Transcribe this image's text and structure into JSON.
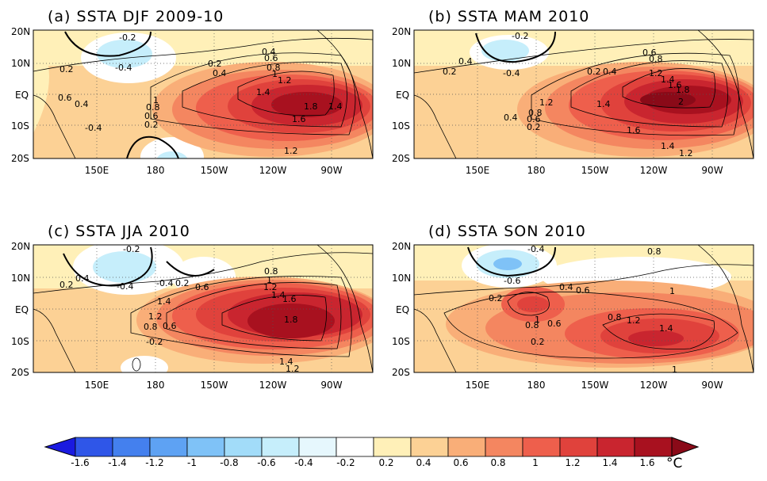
{
  "panels": [
    {
      "title": "(a) SSTA DJF 2009-10"
    },
    {
      "title": "(b) SSTA MAM 2010"
    },
    {
      "title": "(c) SSTA JJA 2010"
    },
    {
      "title": "(d) SSTA SON 2010"
    }
  ],
  "lat_ticks": [
    "20N",
    "10N",
    "EQ",
    "10S",
    "20S"
  ],
  "lon_ticks": [
    "150E",
    "180",
    "150W",
    "120W",
    "90W"
  ],
  "contour_labels": {
    "a": [
      "-0.2",
      "-0.4",
      "0.2",
      "0.2",
      "0.4",
      "0.4",
      "0.6",
      "0.8",
      "1",
      "1.2",
      "1.4",
      "1.8",
      "1.4",
      "1.6",
      "1.2",
      "0.6",
      "0.4",
      "1",
      "0.8",
      "0.6",
      "0.2",
      "-0.4"
    ],
    "b": [
      "-0.2",
      "0.4",
      "0.2",
      "-0.4",
      "0.2",
      "0.4",
      "0.6",
      "0.8",
      "1.2",
      "1.4",
      "1.6",
      "1.8",
      "2",
      "1.4",
      "1.2",
      "1.6",
      "0.4",
      "0.8",
      "0.6",
      "0.2",
      "1.4",
      "1.2"
    ],
    "c": [
      "-0.2",
      "0.2",
      "0.4",
      "-0.4",
      "-0.4",
      "0.2",
      "0.6",
      "0.8",
      "1",
      "1.2",
      "1.4",
      "1.6",
      "1.8",
      "1.4",
      "1.2",
      "0.8",
      "0.6",
      "-0.2",
      "1.4",
      "1.2"
    ],
    "d": [
      "-0.4",
      "-0.6",
      "0.2",
      "0.4",
      "0.6",
      "1",
      "0.8",
      "0.6",
      "0.8",
      "1",
      "1.2",
      "1.4",
      "0.2",
      "1",
      "0.8"
    ]
  },
  "colorbar": {
    "labels": [
      "-1.6",
      "-1.4",
      "-1.2",
      "-1",
      "-0.8",
      "-0.6",
      "-0.4",
      "-0.2",
      "0.2",
      "0.4",
      "0.6",
      "0.8",
      "1",
      "1.2",
      "1.4",
      "1.6"
    ],
    "unit": "°C",
    "colors": [
      "#1a1ae0",
      "#2f56e8",
      "#4480ee",
      "#5ea2f3",
      "#7fc2f7",
      "#a2dcf9",
      "#c6eefb",
      "#ffffff",
      "#fff0b8",
      "#fcd195",
      "#f9ae78",
      "#f48660",
      "#ee5f4c",
      "#e0423c",
      "#c9252f",
      "#a8111f"
    ]
  }
}
